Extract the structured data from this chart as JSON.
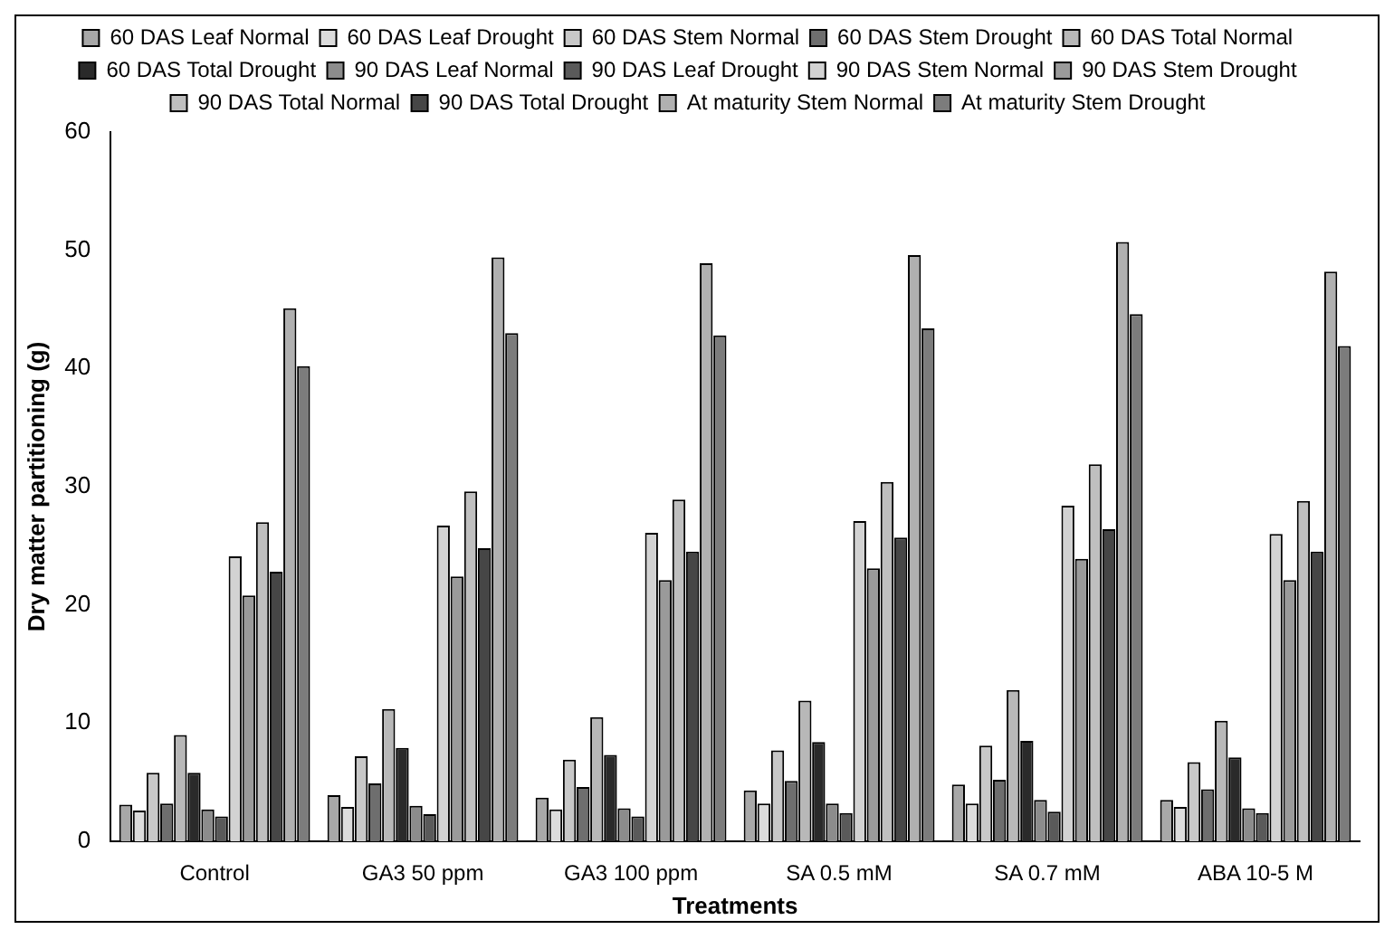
{
  "chart_data": {
    "type": "bar",
    "xlabel": "Treatments",
    "ylabel": "Dry matter partitioning (g)",
    "categories": [
      "Control",
      "GA3 50 ppm",
      "GA3 100 ppm",
      "SA 0.5 mM",
      "SA 0.7 mM",
      "ABA 10-5 M"
    ],
    "ylim": [
      0,
      60
    ],
    "yticks": [
      0,
      10,
      20,
      30,
      40,
      50,
      60
    ],
    "grid": false,
    "legend": "top",
    "series": [
      {
        "name": "60 DAS Leaf Normal",
        "color": "#a8a8a8",
        "values": [
          3.1,
          3.9,
          3.7,
          4.3,
          4.8,
          3.5
        ]
      },
      {
        "name": "60 DAS Leaf Drought",
        "color": "#dcdcdc",
        "values": [
          2.6,
          2.9,
          2.7,
          3.2,
          3.2,
          2.9
        ]
      },
      {
        "name": "60 DAS Stem Normal",
        "color": "#c8c8c8",
        "values": [
          5.8,
          7.2,
          6.9,
          7.7,
          8.1,
          6.7
        ]
      },
      {
        "name": "60 DAS Stem Drought",
        "color": "#6e6e6e",
        "values": [
          3.2,
          4.9,
          4.6,
          5.1,
          5.2,
          4.4
        ]
      },
      {
        "name": "60 DAS Total Normal",
        "color": "#b8b8b8",
        "values": [
          9.0,
          11.2,
          10.5,
          11.9,
          12.8,
          10.2
        ]
      },
      {
        "name": "60 DAS Total Drought",
        "color": "#2a2a2a",
        "values": [
          5.8,
          7.9,
          7.3,
          8.4,
          8.5,
          7.1
        ]
      },
      {
        "name": "90 DAS Leaf Normal",
        "color": "#8c8c8c",
        "values": [
          2.7,
          3.0,
          2.8,
          3.2,
          3.5,
          2.8
        ]
      },
      {
        "name": "90 DAS Leaf Drought",
        "color": "#5a5a5a",
        "values": [
          2.1,
          2.3,
          2.1,
          2.4,
          2.5,
          2.4
        ]
      },
      {
        "name": "90 DAS Stem Normal",
        "color": "#d2d2d2",
        "values": [
          24.1,
          26.7,
          26.1,
          27.1,
          28.4,
          26.0
        ]
      },
      {
        "name": "90 DAS Stem Drought",
        "color": "#9a9a9a",
        "values": [
          20.8,
          22.4,
          22.1,
          23.1,
          23.9,
          22.1
        ]
      },
      {
        "name": "90 DAS Total Normal",
        "color": "#bfbfbf",
        "values": [
          27.0,
          29.6,
          28.9,
          30.4,
          31.9,
          28.8
        ]
      },
      {
        "name": "90 DAS Total Drought",
        "color": "#464646",
        "values": [
          22.8,
          24.8,
          24.5,
          25.7,
          26.4,
          24.5
        ]
      },
      {
        "name": "At maturity Stem Normal",
        "color": "#b0b0b0",
        "values": [
          45.1,
          49.4,
          48.9,
          49.6,
          50.7,
          48.2
        ]
      },
      {
        "name": "At maturity Stem Drought",
        "color": "#7c7c7c",
        "values": [
          40.2,
          43.0,
          42.8,
          43.4,
          44.6,
          41.9
        ]
      }
    ]
  }
}
